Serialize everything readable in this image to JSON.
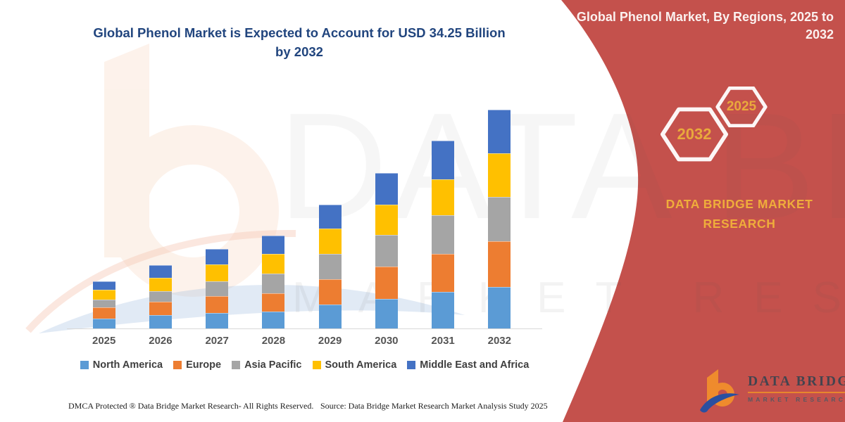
{
  "watermark": {
    "line1": "DATA BRIDGE",
    "line2": "MARKET RESEARCH"
  },
  "footer": {
    "left": "DMCA Protected ® Data Bridge Market Research-  All Rights Reserved.",
    "right": "Source: Data Bridge Market Research  Market Analysis Study 2025"
  },
  "red_panel": {
    "heading": "Global Phenol Market, By Regions, 2025 to 2032",
    "hexagons": [
      {
        "label": "2032"
      },
      {
        "label": "2025"
      }
    ],
    "brand_text": "DATA BRIDGE MARKET RESEARCH",
    "background_color": "#c4514c",
    "accent_gold": "#e9a93c",
    "logo": {
      "brand": "DATA BRIDGE",
      "sub": "MARKET RESEARCH"
    }
  },
  "chart_data": {
    "type": "bar",
    "stacked": true,
    "title": "Global Phenol Market is Expected to Account for USD 34.25 Billion by 2032",
    "unit": "USD billion (estimated from bar heights)",
    "projected_total_2032_usd_billion": 34.25,
    "categories": [
      "2025",
      "2026",
      "2027",
      "2028",
      "2029",
      "2030",
      "2031",
      "2032"
    ],
    "series": [
      {
        "name": "North America",
        "color": "#5b9bd5",
        "values": [
          1.5,
          2.1,
          2.4,
          2.7,
          3.8,
          4.6,
          5.7,
          6.5
        ]
      },
      {
        "name": "Europe",
        "color": "#ed7d31",
        "values": [
          1.8,
          2.1,
          2.7,
          2.8,
          3.9,
          5.1,
          6.0,
          7.2
        ]
      },
      {
        "name": "Asia Pacific",
        "color": "#a5a5a5",
        "values": [
          1.2,
          1.6,
          2.3,
          3.1,
          4.0,
          5.0,
          6.1,
          6.9
        ]
      },
      {
        "name": "South America",
        "color": "#ffc000",
        "values": [
          1.6,
          2.1,
          2.6,
          3.1,
          4.0,
          4.7,
          5.6,
          6.8
        ]
      },
      {
        "name": "Middle East and Africa",
        "color": "#4472c4",
        "values": [
          1.3,
          2.0,
          2.5,
          2.9,
          3.7,
          5.0,
          6.0,
          6.85
        ]
      }
    ],
    "totals_by_year": [
      7.4,
      9.9,
      12.5,
      14.6,
      19.4,
      24.4,
      29.4,
      34.25
    ],
    "legend_position": "bottom",
    "grid": false,
    "y_axis_visible": false
  }
}
